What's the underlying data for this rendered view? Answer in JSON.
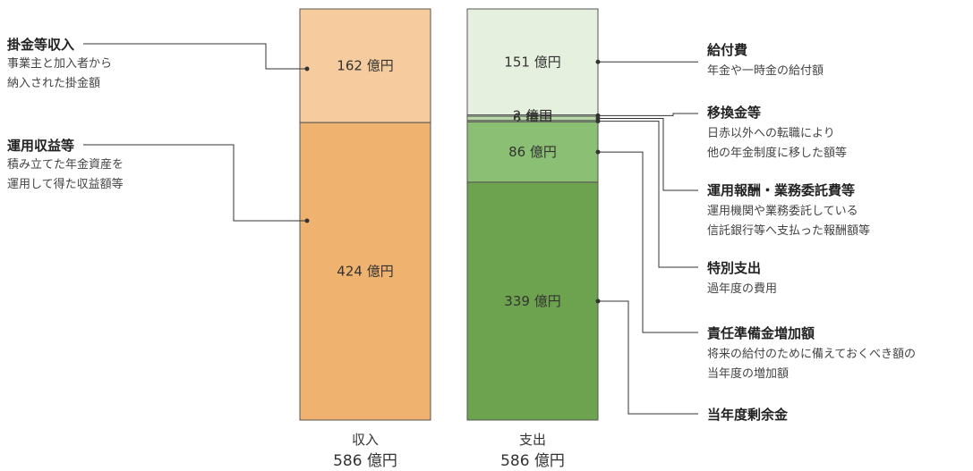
{
  "chart_data": {
    "type": "bar",
    "stacked": true,
    "unit": "億円",
    "colors": {
      "income_contributions": "#f6cc9f",
      "income_investment": "#f0b36f",
      "exp_benefits": "#e6f0de",
      "exp_transfer": "#c4dfb4",
      "exp_fees": "#b8d9a5",
      "exp_special": "#abd296",
      "exp_reserve_increase": "#8bbf74",
      "exp_surplus": "#6da34f",
      "border": "#555555",
      "line": "#333333"
    },
    "bars": [
      {
        "key": "income",
        "name": "収入",
        "total_label": "586 億円",
        "segments": [
          {
            "key": "income_contributions",
            "value": 162,
            "label": "162 億円",
            "title": "掛金等収入",
            "desc": [
              "事業主と加入者から",
              "納入された掛金額"
            ]
          },
          {
            "key": "income_investment",
            "value": 424,
            "label": "424 億円",
            "title": "運用収益等",
            "desc": [
              "積み立てた年金資産を",
              "運用して得た収益額等"
            ]
          }
        ]
      },
      {
        "key": "expense",
        "name": "支出",
        "total_label": "586 億円",
        "segments": [
          {
            "key": "exp_benefits",
            "value": 151,
            "label": "151 億円",
            "title": "給付費",
            "desc": [
              "年金や一時金の給付額"
            ]
          },
          {
            "key": "exp_transfer",
            "value": 2,
            "label": "2 億円",
            "title": "移換金等",
            "desc": [
              "日赤以外への転職により",
              "他の年金制度に移した額等"
            ]
          },
          {
            "key": "exp_fees",
            "value": 6,
            "label": "6 億円",
            "title": "運用報酬・業務委託費等",
            "desc": [
              "運用機関や業務委託している",
              "信託銀行等へ支払った報酬額等"
            ]
          },
          {
            "key": "exp_special",
            "value": 2,
            "label": "2 億円",
            "title": "特別支出",
            "desc": [
              "過年度の費用"
            ]
          },
          {
            "key": "exp_reserve_increase",
            "value": 86,
            "label": "86 億円",
            "title": "責任準備金増加額",
            "desc": [
              "将来の給付のために備えておくべき額の",
              "当年度の増加額"
            ]
          },
          {
            "key": "exp_surplus",
            "value": 339,
            "label": "339 億円",
            "title": "当年度剰余金",
            "desc": []
          }
        ]
      }
    ]
  }
}
